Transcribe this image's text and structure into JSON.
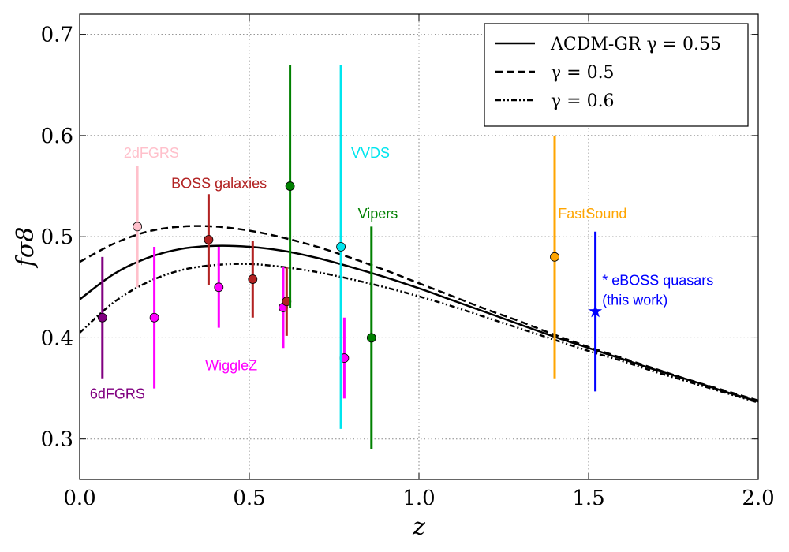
{
  "chart_data": {
    "type": "scatter",
    "title": "",
    "xlabel": "z",
    "ylabel": "fσ8",
    "xlim": [
      0.0,
      2.0
    ],
    "ylim": [
      0.26,
      0.72
    ],
    "x_ticks": [
      "0.0",
      "0.5",
      "1.0",
      "1.5",
      "2.0"
    ],
    "x_tick_values": [
      0.0,
      0.5,
      1.0,
      1.5,
      2.0
    ],
    "y_ticks": [
      "0.3",
      "0.4",
      "0.5",
      "0.6",
      "0.7"
    ],
    "y_tick_values": [
      0.3,
      0.4,
      0.5,
      0.6,
      0.7
    ],
    "grid": true,
    "legend_position": "top-right",
    "curves": [
      {
        "label": "ΛCDM-GR γ = 0.55",
        "style": "solid",
        "x": [
          0.0,
          0.1,
          0.2,
          0.3,
          0.4,
          0.5,
          0.6,
          0.7,
          0.8,
          0.9,
          1.0,
          1.1,
          1.2,
          1.3,
          1.4,
          1.5,
          1.6,
          1.7,
          1.8,
          1.9,
          2.0
        ],
        "y": [
          0.438,
          0.463,
          0.479,
          0.488,
          0.491,
          0.49,
          0.486,
          0.479,
          0.47,
          0.46,
          0.449,
          0.437,
          0.425,
          0.413,
          0.401,
          0.39,
          0.379,
          0.368,
          0.358,
          0.347,
          0.337
        ]
      },
      {
        "label": "γ = 0.5",
        "style": "dashed",
        "x": [
          0.0,
          0.1,
          0.2,
          0.3,
          0.4,
          0.5,
          0.6,
          0.7,
          0.8,
          0.9,
          1.0,
          1.1,
          1.2,
          1.3,
          1.4,
          1.5,
          1.6,
          1.7,
          1.8,
          1.9,
          2.0
        ],
        "y": [
          0.475,
          0.493,
          0.505,
          0.51,
          0.51,
          0.506,
          0.499,
          0.49,
          0.479,
          0.467,
          0.454,
          0.441,
          0.428,
          0.416,
          0.403,
          0.391,
          0.38,
          0.369,
          0.358,
          0.348,
          0.338
        ]
      },
      {
        "label": "γ = 0.6",
        "style": "dashdot",
        "x": [
          0.0,
          0.1,
          0.2,
          0.3,
          0.4,
          0.5,
          0.6,
          0.7,
          0.8,
          0.9,
          1.0,
          1.1,
          1.2,
          1.3,
          1.4,
          1.5,
          1.6,
          1.7,
          1.8,
          1.9,
          2.0
        ],
        "y": [
          0.405,
          0.435,
          0.455,
          0.467,
          0.472,
          0.473,
          0.47,
          0.465,
          0.458,
          0.45,
          0.441,
          0.431,
          0.42,
          0.409,
          0.398,
          0.387,
          0.377,
          0.366,
          0.356,
          0.346,
          0.336
        ]
      }
    ],
    "datasets": [
      {
        "label": "6dFGRS",
        "color": "#800080",
        "label_pos": [
          0.03,
          0.34
        ],
        "points": [
          {
            "x": 0.067,
            "y": 0.42,
            "err": 0.06
          }
        ]
      },
      {
        "label": "2dFGRS",
        "color": "#ffc0cb",
        "label_pos": [
          0.13,
          0.578
        ],
        "points": [
          {
            "x": 0.17,
            "y": 0.51,
            "err": 0.06
          }
        ]
      },
      {
        "label": "WiggleZ",
        "color": "#ff00ff",
        "label_pos": [
          0.37,
          0.368
        ],
        "points": [
          {
            "x": 0.22,
            "y": 0.42,
            "err": 0.07
          },
          {
            "x": 0.41,
            "y": 0.45,
            "err": 0.04
          },
          {
            "x": 0.6,
            "y": 0.43,
            "err": 0.04
          },
          {
            "x": 0.78,
            "y": 0.38,
            "err": 0.04
          }
        ]
      },
      {
        "label": "BOSS galaxies",
        "color": "#b22222",
        "label_pos": [
          0.27,
          0.548
        ],
        "points": [
          {
            "x": 0.38,
            "y": 0.497,
            "err": 0.045
          },
          {
            "x": 0.51,
            "y": 0.458,
            "err": 0.038
          },
          {
            "x": 0.61,
            "y": 0.436,
            "err": 0.034
          }
        ]
      },
      {
        "label": "VVDS",
        "color": "#00e5ee",
        "label_pos": [
          0.8,
          0.578
        ],
        "points": [
          {
            "x": 0.77,
            "y": 0.49,
            "err": 0.18
          }
        ]
      },
      {
        "label": "Vipers",
        "color": "#008000",
        "label_pos": [
          0.82,
          0.518
        ],
        "points": [
          {
            "x": 0.62,
            "y": 0.55,
            "err": 0.12
          },
          {
            "x": 0.86,
            "y": 0.4,
            "err": 0.11
          }
        ]
      },
      {
        "label": "FastSound",
        "color": "#ffa500",
        "label_pos": [
          1.41,
          0.518
        ],
        "points": [
          {
            "x": 1.4,
            "y": 0.48,
            "err": 0.12
          }
        ]
      },
      {
        "label": "* eBOSS quasars",
        "label2": "(this work)",
        "color": "#0000ff",
        "marker": "star",
        "label_pos": [
          1.54,
          0.452
        ],
        "points": [
          {
            "x": 1.52,
            "y": 0.426,
            "err": 0.079
          }
        ]
      }
    ]
  }
}
